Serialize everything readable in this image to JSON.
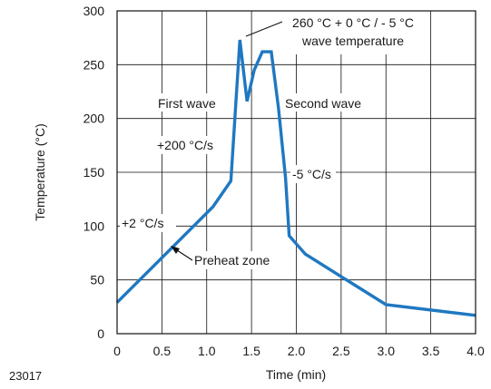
{
  "figure_id": "23017",
  "colors": {
    "curve": "#1f78c1",
    "axis": "#111111"
  },
  "chart_data": {
    "type": "line",
    "title": "",
    "xlabel": "Time (min)",
    "ylabel": "Temperature (°C)",
    "xlim": [
      0,
      4.0
    ],
    "ylim": [
      0,
      300
    ],
    "xticks": [
      0,
      0.5,
      1.0,
      1.5,
      2.0,
      2.5,
      3.0,
      3.5,
      4.0
    ],
    "xtick_labels": [
      "0",
      "0.5",
      "1.0",
      "1.5",
      "2.0",
      "2.5",
      "3.0",
      "3.5",
      "4.0"
    ],
    "yticks": [
      0,
      50,
      100,
      150,
      200,
      250,
      300
    ],
    "ytick_labels": [
      "0",
      "50",
      "100",
      "150",
      "200",
      "250",
      "300"
    ],
    "grid": true,
    "series": [
      {
        "x": [
          0,
          1.07,
          1.27,
          1.37,
          1.45,
          1.53,
          1.62,
          1.72,
          1.8,
          1.88,
          1.92,
          2.1,
          3.0,
          4.0
        ],
        "y": [
          29,
          118,
          142,
          273,
          216,
          245,
          262,
          262,
          210,
          145,
          91,
          74,
          27,
          17
        ]
      }
    ],
    "annotations": [
      {
        "text_lines": [
          "260 °C + 0 °C / - 5 °C",
          "wave temperature"
        ]
      },
      {
        "text": "First wave"
      },
      {
        "text": "Second wave"
      },
      {
        "text": "+200 °C/s"
      },
      {
        "text": "-5 °C/s"
      },
      {
        "text": "+2 °C/s"
      },
      {
        "text": "Preheat zone"
      }
    ]
  }
}
